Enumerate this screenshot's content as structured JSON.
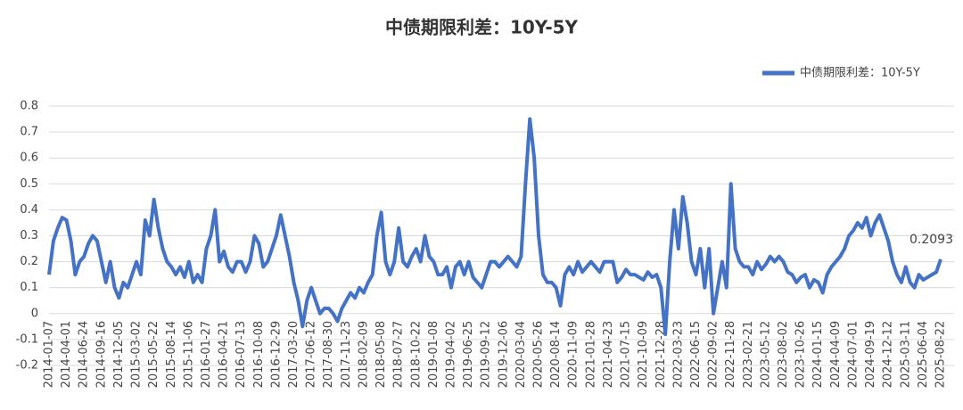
{
  "chart_data": {
    "type": "line",
    "title": "中债期限利差：10Y-5Y",
    "categories": [
      "2014-01-07",
      null,
      null,
      null,
      "2014-04-01",
      null,
      null,
      null,
      "2014-06-24",
      null,
      null,
      null,
      "2014-09-16",
      null,
      null,
      null,
      "2014-12-05",
      null,
      null,
      null,
      "2015-03-02",
      null,
      null,
      null,
      "2015-05-22",
      null,
      null,
      null,
      "2015-08-14",
      null,
      null,
      null,
      "2015-11-06",
      null,
      null,
      null,
      "2016-01-27",
      null,
      null,
      null,
      "2016-04-21",
      null,
      null,
      null,
      "2016-07-13",
      null,
      null,
      null,
      "2016-10-08",
      null,
      null,
      null,
      "2016-12-29",
      null,
      null,
      null,
      "2017-03-20",
      null,
      null,
      null,
      "2017-06-12",
      null,
      null,
      null,
      "2017-08-30",
      null,
      null,
      null,
      "2017-11-23",
      null,
      null,
      null,
      "2018-02-09",
      null,
      null,
      null,
      "2018-05-08",
      null,
      null,
      null,
      "2018-07-27",
      null,
      null,
      null,
      "2018-10-22",
      null,
      null,
      null,
      "2019-01-08",
      null,
      null,
      null,
      "2019-04-02",
      null,
      null,
      null,
      "2019-06-25",
      null,
      null,
      null,
      "2019-09-12",
      null,
      null,
      null,
      "2019-12-06",
      null,
      null,
      null,
      "2020-03-04",
      null,
      null,
      null,
      "2020-05-26",
      null,
      null,
      null,
      "2020-08-14",
      null,
      null,
      null,
      "2020-11-09",
      null,
      null,
      null,
      "2021-01-28",
      null,
      null,
      null,
      "2021-04-23",
      null,
      null,
      null,
      "2021-07-15",
      null,
      null,
      null,
      "2021-10-09",
      null,
      null,
      null,
      "2021-12-28",
      null,
      null,
      null,
      "2022-03-23",
      null,
      null,
      null,
      "2022-06-15",
      null,
      null,
      null,
      "2022-09-02",
      null,
      null,
      null,
      "2022-11-28",
      null,
      null,
      null,
      "2023-02-21",
      null,
      null,
      null,
      "2023-05-12",
      null,
      null,
      null,
      "2023-08-02",
      null,
      null,
      null,
      "2023-10-26",
      null,
      null,
      null,
      "2024-01-15",
      null,
      null,
      null,
      "2024-04-09",
      null,
      null,
      null,
      "2024-07-01",
      null,
      null,
      null,
      "2024-09-19",
      null,
      null,
      null,
      "2024-12-12",
      null,
      null,
      null,
      "2025-03-11",
      null,
      null,
      null,
      "2025-06-04",
      null,
      null,
      null,
      "2025-08-22"
    ],
    "series": [
      {
        "name": "中债期限利差：10Y-5Y",
        "color": "#4472c4",
        "values": [
          0.15,
          0.28,
          0.33,
          0.37,
          0.36,
          0.28,
          0.15,
          0.2,
          0.22,
          0.27,
          0.3,
          0.28,
          0.2,
          0.12,
          0.2,
          0.1,
          0.06,
          0.12,
          0.1,
          0.15,
          0.2,
          0.15,
          0.36,
          0.3,
          0.44,
          0.33,
          0.25,
          0.2,
          0.18,
          0.15,
          0.18,
          0.14,
          0.2,
          0.12,
          0.15,
          0.12,
          0.25,
          0.3,
          0.4,
          0.2,
          0.24,
          0.18,
          0.16,
          0.2,
          0.2,
          0.16,
          0.2,
          0.3,
          0.27,
          0.18,
          0.2,
          0.25,
          0.3,
          0.38,
          0.3,
          0.22,
          0.12,
          0.05,
          -0.05,
          0.05,
          0.1,
          0.05,
          0.0,
          0.02,
          0.02,
          0.0,
          -0.03,
          0.02,
          0.05,
          0.08,
          0.06,
          0.1,
          0.08,
          0.12,
          0.15,
          0.3,
          0.39,
          0.2,
          0.15,
          0.2,
          0.33,
          0.2,
          0.18,
          0.22,
          0.25,
          0.2,
          0.3,
          0.22,
          0.2,
          0.15,
          0.15,
          0.18,
          0.1,
          0.18,
          0.2,
          0.15,
          0.2,
          0.14,
          0.12,
          0.1,
          0.15,
          0.2,
          0.2,
          0.18,
          0.2,
          0.22,
          0.2,
          0.18,
          0.22,
          0.5,
          0.75,
          0.6,
          0.3,
          0.15,
          0.12,
          0.12,
          0.1,
          0.03,
          0.15,
          0.18,
          0.15,
          0.2,
          0.16,
          0.18,
          0.2,
          0.18,
          0.16,
          0.2,
          0.2,
          0.2,
          0.12,
          0.14,
          0.17,
          0.15,
          0.15,
          0.14,
          0.13,
          0.16,
          0.14,
          0.15,
          0.1,
          -0.08,
          0.2,
          0.4,
          0.25,
          0.45,
          0.35,
          0.2,
          0.15,
          0.25,
          0.1,
          0.25,
          0.0,
          0.1,
          0.2,
          0.1,
          0.5,
          0.25,
          0.2,
          0.18,
          0.18,
          0.15,
          0.2,
          0.17,
          0.19,
          0.22,
          0.2,
          0.22,
          0.2,
          0.16,
          0.15,
          0.12,
          0.14,
          0.15,
          0.1,
          0.13,
          0.12,
          0.08,
          0.15,
          0.18,
          0.2,
          0.22,
          0.25,
          0.3,
          0.32,
          0.35,
          0.33,
          0.37,
          0.3,
          0.35,
          0.38,
          0.33,
          0.28,
          0.2,
          0.15,
          0.12,
          0.18,
          0.12,
          0.1,
          0.15,
          0.13,
          0.14,
          0.15,
          0.16,
          0.2093
        ]
      }
    ],
    "ylim": [
      -0.2,
      0.8
    ],
    "yticks": [
      -0.2,
      -0.1,
      0,
      0.1,
      0.2,
      0.3,
      0.4,
      0.5,
      0.6,
      0.7,
      0.8
    ],
    "grid": true,
    "legend": "top-right",
    "show_last_value": true
  }
}
